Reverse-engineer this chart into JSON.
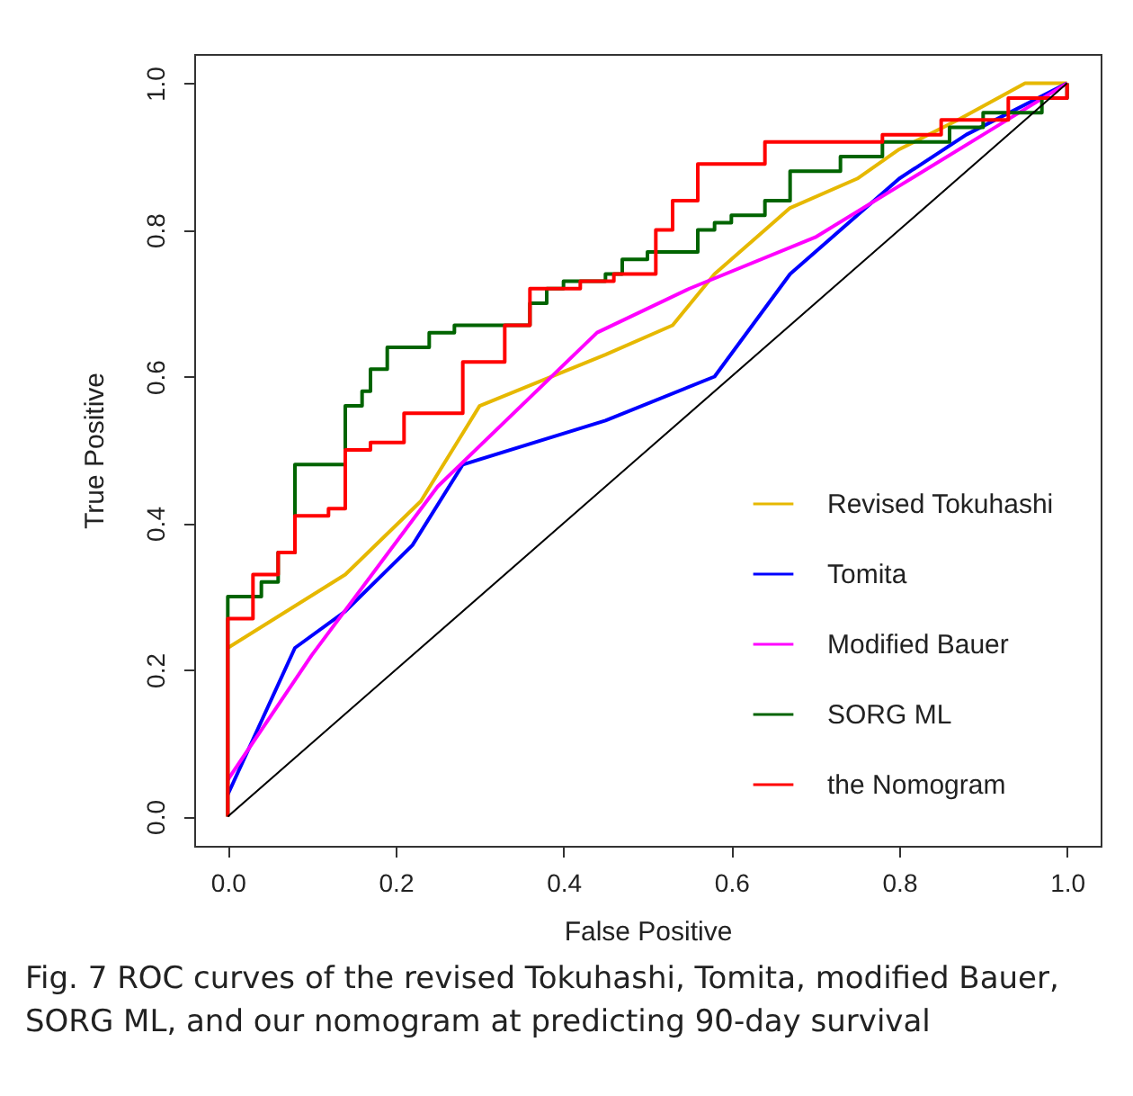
{
  "chart_data": {
    "type": "line",
    "xlabel": "False Positive",
    "ylabel": "True Positive",
    "xlim": [
      -0.04,
      1.04
    ],
    "ylim": [
      -0.04,
      1.04
    ],
    "xticks": [
      {
        "value": 0,
        "label": "0.0"
      },
      0.2,
      0.4,
      0.6,
      0.8,
      {
        "value": 1,
        "label": "1.0"
      }
    ],
    "yticks": [
      {
        "value": 0,
        "label": "0.0"
      },
      0.2,
      0.4,
      0.6,
      0.8,
      {
        "value": 1,
        "label": "1.0"
      }
    ],
    "grid": false,
    "legend": "bottom right",
    "marker": "none",
    "line_style": "solid",
    "annotations": [
      "Fig. 7 ROC curves of the revised Tokuhashi, Tomita, modified Bauer, SORG ML, and our nomogram at predicting 90-day survival"
    ],
    "series": [
      {
        "name": "Revised Tokuhashi",
        "color": "#e6b800",
        "x": [
          0,
          0.14,
          0.23,
          0.3,
          0.45,
          0.53,
          0.58,
          0.67,
          0.75,
          0.8,
          0.87,
          0.95,
          1
        ],
        "values": [
          0.23,
          0.33,
          0.43,
          0.56,
          0.63,
          0.67,
          0.74,
          0.83,
          0.87,
          0.91,
          0.95,
          1,
          1
        ]
      },
      {
        "name": "Tomita",
        "color": "#0000ff",
        "x": [
          0,
          0.08,
          0.14,
          0.22,
          0.28,
          0.45,
          0.58,
          0.67,
          0.8,
          0.88,
          1
        ],
        "values": [
          0.03,
          0.23,
          0.28,
          0.37,
          0.48,
          0.54,
          0.6,
          0.74,
          0.87,
          0.93,
          1
        ]
      },
      {
        "name": "Modified Bauer",
        "color": "#ff00ff",
        "x": [
          0,
          0.1,
          0.25,
          0.44,
          0.55,
          0.7,
          0.8,
          0.9,
          1
        ],
        "values": [
          0.05,
          0.22,
          0.45,
          0.66,
          0.72,
          0.79,
          0.86,
          0.93,
          1
        ]
      },
      {
        "name": "SORG ML",
        "color": "#006400",
        "type": "step",
        "x": [
          0,
          0,
          0.04,
          0.06,
          0.08,
          0.08,
          0.14,
          0.14,
          0.16,
          0.17,
          0.19,
          0.24,
          0.27,
          0.33,
          0.36,
          0.38,
          0.4,
          0.45,
          0.47,
          0.5,
          0.56,
          0.58,
          0.6,
          0.64,
          0.67,
          0.73,
          0.78,
          0.86,
          0.9,
          0.97,
          1
        ],
        "values": [
          0,
          0.3,
          0.32,
          0.36,
          0.37,
          0.48,
          0.51,
          0.56,
          0.58,
          0.61,
          0.64,
          0.66,
          0.67,
          0.67,
          0.7,
          0.72,
          0.73,
          0.74,
          0.76,
          0.77,
          0.8,
          0.81,
          0.82,
          0.84,
          0.88,
          0.9,
          0.92,
          0.94,
          0.96,
          0.98,
          1
        ]
      },
      {
        "name": "the Nomogram",
        "color": "#ff0000",
        "type": "step",
        "x": [
          0,
          0,
          0.03,
          0.06,
          0.08,
          0.12,
          0.14,
          0.17,
          0.21,
          0.28,
          0.33,
          0.36,
          0.42,
          0.46,
          0.51,
          0.53,
          0.56,
          0.64,
          0.78,
          0.85,
          0.93,
          1
        ],
        "values": [
          0,
          0.27,
          0.33,
          0.36,
          0.41,
          0.42,
          0.5,
          0.51,
          0.55,
          0.62,
          0.67,
          0.72,
          0.73,
          0.74,
          0.8,
          0.84,
          0.89,
          0.92,
          0.93,
          0.95,
          0.98,
          1
        ]
      },
      {
        "color": "#000000",
        "x": [
          0,
          1
        ],
        "values": [
          0,
          1
        ]
      }
    ]
  }
}
